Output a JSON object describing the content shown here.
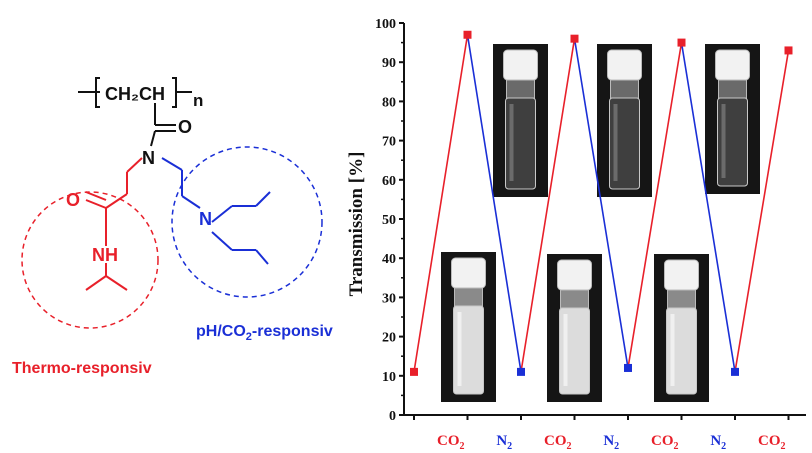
{
  "colors": {
    "red": "#e8202a",
    "blue": "#1a2fd6",
    "black": "#111111"
  },
  "molecule": {
    "backbone": "CH₂CH",
    "repeat_index": "n",
    "carbonyl_o": "O",
    "nitrogen": "N",
    "amide_o": "O",
    "amide_nh": "NH",
    "amine_n": "N",
    "thermo_label": "Thermo-responsiv",
    "ph_label_pre": "pH/CO",
    "ph_label_sub": "2",
    "ph_label_post": "-responsiv"
  },
  "chart_data": {
    "type": "line",
    "ylabel": "Transmission [%]",
    "ylim": [
      0,
      100
    ],
    "yticks": [
      "0",
      "10",
      "20",
      "30",
      "40",
      "50",
      "60",
      "70",
      "80",
      "90",
      "100"
    ],
    "categories": [
      {
        "main": "CO",
        "sub": "2",
        "color": "red"
      },
      {
        "main": "N",
        "sub": "2",
        "color": "blue"
      },
      {
        "main": "CO",
        "sub": "2",
        "color": "red"
      },
      {
        "main": "N",
        "sub": "2",
        "color": "blue"
      },
      {
        "main": "CO",
        "sub": "2",
        "color": "red"
      },
      {
        "main": "N",
        "sub": "2",
        "color": "blue"
      },
      {
        "main": "CO",
        "sub": "2",
        "color": "red"
      }
    ],
    "points": [
      {
        "x": 0,
        "y": 11,
        "color": "red"
      },
      {
        "x": 1,
        "y": 97,
        "color": "red"
      },
      {
        "x": 2,
        "y": 11,
        "color": "blue"
      },
      {
        "x": 3,
        "y": 96,
        "color": "red"
      },
      {
        "x": 4,
        "y": 12,
        "color": "blue"
      },
      {
        "x": 5,
        "y": 95,
        "color": "red"
      },
      {
        "x": 6,
        "y": 11,
        "color": "blue"
      },
      {
        "x": 7,
        "y": 93,
        "color": "red"
      }
    ],
    "grid": false,
    "legend": "none",
    "inset_photos": [
      {
        "name": "clear-vial-1",
        "state": "clear"
      },
      {
        "name": "clear-vial-2",
        "state": "clear"
      },
      {
        "name": "clear-vial-3",
        "state": "clear"
      },
      {
        "name": "turbid-vial-1",
        "state": "turbid"
      },
      {
        "name": "turbid-vial-2",
        "state": "turbid"
      },
      {
        "name": "turbid-vial-3",
        "state": "turbid"
      }
    ]
  }
}
